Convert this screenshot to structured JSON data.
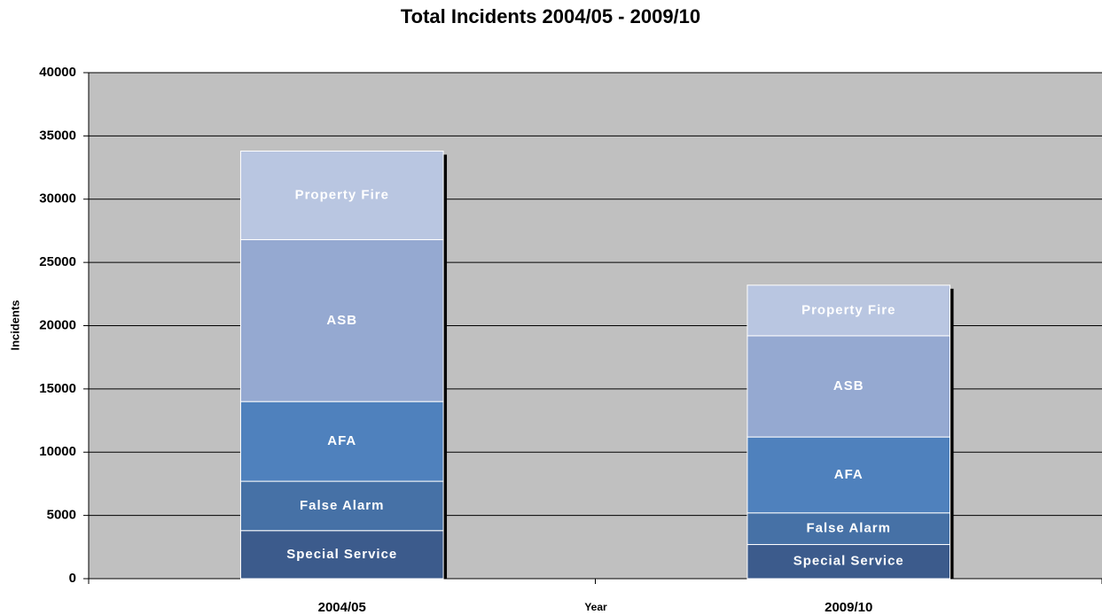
{
  "chart_data": {
    "type": "stacked_bar",
    "title": "Total Incidents 2004/05 - 2009/10",
    "x_label": "Year",
    "y_label": "Incidents",
    "categories": [
      "2004/05",
      "2009/10"
    ],
    "series": [
      {
        "name": "Special Service",
        "color": "#3c5b8c",
        "values": [
          3800,
          2700
        ]
      },
      {
        "name": "False Alarm",
        "color": "#4671a6",
        "values": [
          3900,
          2500
        ]
      },
      {
        "name": "AFA",
        "color": "#4f81bd",
        "values": [
          6300,
          6000
        ]
      },
      {
        "name": "ASB",
        "color": "#95a9d1",
        "values": [
          12800,
          8000
        ]
      },
      {
        "name": "Property Fire",
        "color": "#b9c6e1",
        "values": [
          7000,
          4000
        ]
      }
    ],
    "ylim": [
      0,
      40000
    ],
    "yticks": [
      0,
      5000,
      10000,
      15000,
      20000,
      25000,
      30000,
      35000,
      40000
    ],
    "grid": true
  }
}
